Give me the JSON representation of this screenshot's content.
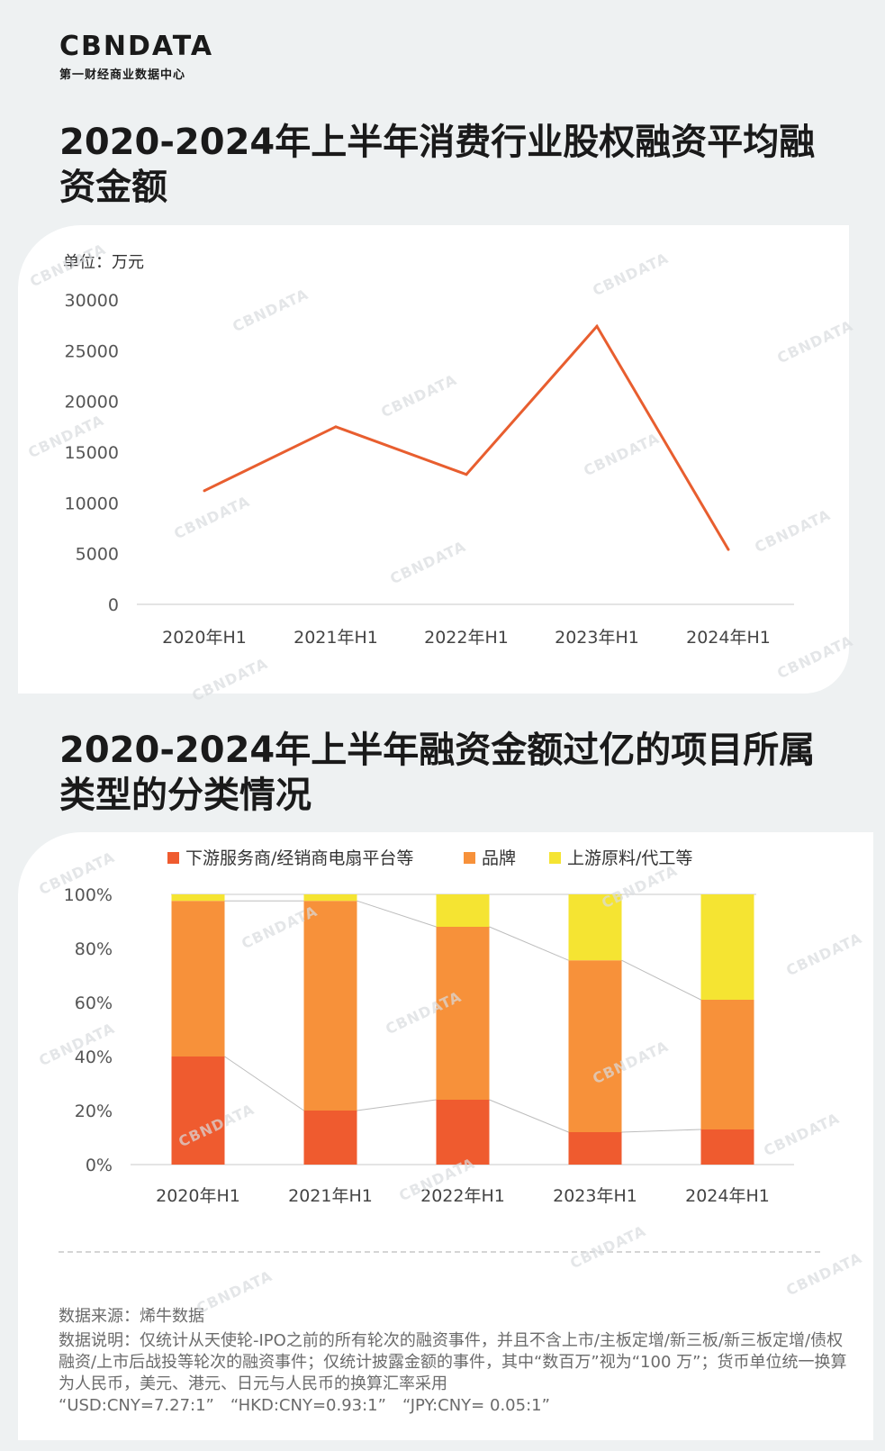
{
  "logo": {
    "main": "CBNDATA",
    "sub": "第一财经商业数据中心"
  },
  "title1": "2020-2024年上半年消费行业股权融资平均融资金额",
  "title2": "2020-2024年上半年融资金额过亿的项目所属类型的分类情况",
  "watermark": "CBNDATA",
  "colors": {
    "line": "#e85e2f",
    "downstream": "#ef5b2f",
    "brand": "#f7913a",
    "upstream": "#f5e432"
  },
  "chart_data": [
    {
      "type": "line",
      "unit_label": "单位：万元",
      "categories": [
        "2020年H1",
        "2021年H1",
        "2022年H1",
        "2023年H1",
        "2024年H1"
      ],
      "yticks": [
        "30000",
        "25000",
        "20000",
        "15000",
        "10000",
        "5000",
        "0"
      ],
      "ylim": [
        0,
        30000
      ],
      "series": [
        {
          "values": [
            11200,
            17500,
            12800,
            27400,
            5400
          ]
        }
      ],
      "grid": false
    },
    {
      "type": "bar",
      "stacked": true,
      "categories": [
        "2020年H1",
        "2021年H1",
        "2022年H1",
        "2023年H1",
        "2024年H1"
      ],
      "yticks": [
        "100%",
        "80%",
        "60%",
        "40%",
        "20%",
        "0%"
      ],
      "ylim": [
        0,
        100
      ],
      "legend_position": "top",
      "series": [
        {
          "name": "下游服务商/经销商电扇平台等",
          "values": [
            40,
            20,
            24,
            12,
            13
          ]
        },
        {
          "name": "品牌",
          "values": [
            57.6,
            77.6,
            64,
            63.6,
            48
          ]
        },
        {
          "name": "上游原料/代工等",
          "values": [
            2.4,
            2.4,
            12,
            24.4,
            39
          ]
        }
      ]
    }
  ],
  "footer": {
    "source": "数据来源：烯牛数据",
    "note": "数据说明：仅统计从天使轮-IPO之前的所有轮次的融资事件，并且不含上市/主板定增/新三板/新三板定增/债权融资/上市后战投等轮次的融资事件；仅统计披露金额的事件，其中“数百万”视为“100 万”；货币单位统一换算为人民币，美元、港元、日元与人民币的换算汇率采用 “USD:CNY=7.27:1”　“HKD:CNY=0.93:1”　“JPY:CNY= 0.05:1”"
  }
}
